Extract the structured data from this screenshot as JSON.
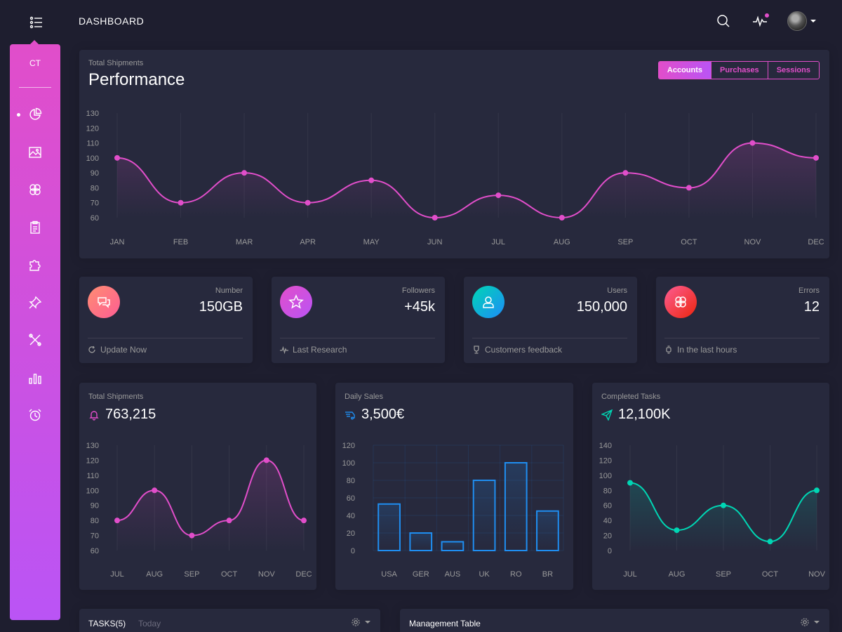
{
  "header": {
    "title": "DASHBOARD"
  },
  "sidebar": {
    "logo": "CT",
    "items": [
      {
        "icon": "pie-chart-icon",
        "active": true
      },
      {
        "icon": "image-icon"
      },
      {
        "icon": "atom-icon"
      },
      {
        "icon": "clipboard-icon"
      },
      {
        "icon": "puzzle-icon"
      },
      {
        "icon": "pin-icon"
      },
      {
        "icon": "tools-icon"
      },
      {
        "icon": "bar-chart-icon"
      },
      {
        "icon": "alarm-icon"
      }
    ]
  },
  "performance": {
    "category": "Total Shipments",
    "title": "Performance",
    "tabs": [
      "Accounts",
      "Purchases",
      "Sessions"
    ],
    "active_tab": "Accounts"
  },
  "stats": [
    {
      "label": "Number",
      "value": "150GB",
      "footer": "Update Now",
      "color": "#fd5d93",
      "icon": "chat-icon",
      "footer_icon": "refresh-icon"
    },
    {
      "label": "Followers",
      "value": "+45k",
      "footer": "Last Research",
      "color": "#ba54f5",
      "icon": "star-icon",
      "footer_icon": "pulse-icon"
    },
    {
      "label": "Users",
      "value": "150,000",
      "footer": "Customers feedback",
      "color": "#1d8cf8",
      "icon": "user-icon",
      "footer_icon": "trophy-icon"
    },
    {
      "label": "Errors",
      "value": "12",
      "footer": "In the last hours",
      "color": "#ec250d",
      "icon": "atom-icon",
      "footer_icon": "watch-icon"
    }
  ],
  "small_cards": [
    {
      "category": "Total Shipments",
      "value": "763,215",
      "icon": "bell-icon"
    },
    {
      "category": "Daily Sales",
      "value": "3,500€",
      "icon": "delivery-icon"
    },
    {
      "category": "Completed Tasks",
      "value": "12,100K",
      "icon": "send-icon"
    }
  ],
  "bottom": {
    "tasks_title": "TASKS(5)",
    "tasks_sub": "Today",
    "table_title": "Management Table"
  },
  "chart_data": [
    {
      "id": "performance",
      "type": "line",
      "categories": [
        "JAN",
        "FEB",
        "MAR",
        "APR",
        "MAY",
        "JUN",
        "JUL",
        "AUG",
        "SEP",
        "OCT",
        "NOV",
        "DEC"
      ],
      "values": [
        100,
        70,
        90,
        70,
        85,
        60,
        75,
        60,
        90,
        80,
        110,
        100
      ],
      "ylim": [
        60,
        130
      ],
      "yticks": [
        60,
        70,
        80,
        90,
        100,
        110,
        120,
        130
      ],
      "color": "#e14eca"
    },
    {
      "id": "shipments",
      "type": "line",
      "categories": [
        "JUL",
        "AUG",
        "SEP",
        "OCT",
        "NOV",
        "DEC"
      ],
      "values": [
        80,
        100,
        70,
        80,
        120,
        80
      ],
      "ylim": [
        60,
        130
      ],
      "yticks": [
        60,
        70,
        80,
        90,
        100,
        110,
        120,
        130
      ],
      "color": "#e14eca"
    },
    {
      "id": "daily_sales",
      "type": "bar",
      "categories": [
        "USA",
        "GER",
        "AUS",
        "UK",
        "RO",
        "BR"
      ],
      "values": [
        53,
        20,
        10,
        80,
        100,
        45
      ],
      "ylim": [
        0,
        120
      ],
      "yticks": [
        0,
        20,
        40,
        60,
        80,
        100,
        120
      ],
      "color": "#1f8ef1"
    },
    {
      "id": "completed_tasks",
      "type": "line",
      "categories": [
        "JUL",
        "AUG",
        "SEP",
        "OCT",
        "NOV"
      ],
      "values": [
        90,
        27,
        60,
        12,
        80
      ],
      "ylim": [
        0,
        140
      ],
      "yticks": [
        0,
        20,
        40,
        60,
        80,
        100,
        120,
        140
      ],
      "color": "#00d6b4"
    }
  ]
}
